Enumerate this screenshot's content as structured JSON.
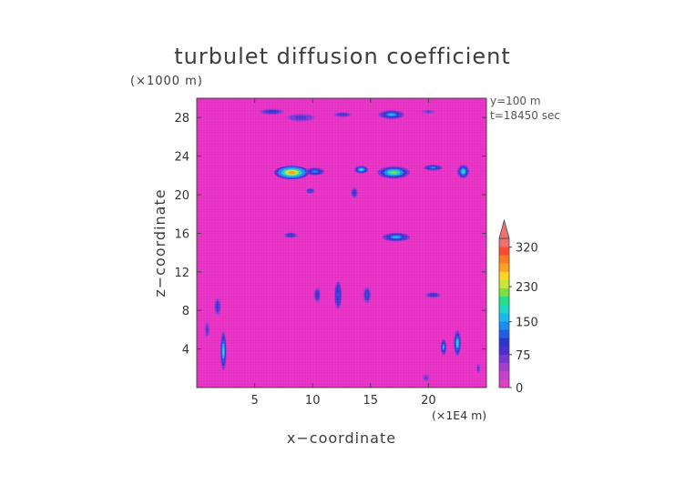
{
  "chart_data": {
    "type": "heatmap",
    "title": "turbulet diffusion coefficient",
    "xlabel": "x−coordinate",
    "ylabel": "z−coordinate",
    "x_unit": "(×1E4 m)",
    "y_unit": "(×1000 m)",
    "x_ticks": [
      5,
      10,
      15,
      20
    ],
    "y_ticks": [
      4,
      8,
      12,
      16,
      20,
      24,
      28
    ],
    "xlim": [
      0,
      25
    ],
    "ylim": [
      0,
      30
    ],
    "annotations": [
      "y=100  m",
      "t=18450 sec"
    ],
    "colorbar": {
      "tick_labels": [
        "0",
        "75",
        "150",
        "230",
        "320"
      ],
      "tick_values": [
        0,
        75,
        150,
        230,
        320
      ],
      "range": [
        0,
        340
      ],
      "colors": [
        "#e23fc4",
        "#c840cc",
        "#a43cd0",
        "#7a35d2",
        "#4b2fd0",
        "#2a36d0",
        "#1f5ee6",
        "#1a8cf2",
        "#1ab8f0",
        "#1ad8c4",
        "#22e08a",
        "#7ae040",
        "#c8e632",
        "#ffd520",
        "#ffa020",
        "#ff7a20",
        "#ff4a30",
        "#f07070"
      ]
    },
    "background_color": "#e630c4",
    "features": [
      {
        "x": 6.5,
        "y": 28.6,
        "w": 2.2,
        "h": 0.6,
        "level": 110
      },
      {
        "x": 9.0,
        "y": 28.0,
        "w": 2.5,
        "h": 0.8,
        "level": 90
      },
      {
        "x": 12.6,
        "y": 28.3,
        "w": 1.6,
        "h": 0.5,
        "level": 100
      },
      {
        "x": 16.8,
        "y": 28.3,
        "w": 2.2,
        "h": 0.9,
        "level": 160
      },
      {
        "x": 20.0,
        "y": 28.6,
        "w": 1.2,
        "h": 0.4,
        "level": 80
      },
      {
        "x": 8.2,
        "y": 22.3,
        "w": 3.0,
        "h": 1.4,
        "level": 280
      },
      {
        "x": 10.2,
        "y": 22.4,
        "w": 1.6,
        "h": 0.8,
        "level": 150
      },
      {
        "x": 14.2,
        "y": 22.6,
        "w": 1.2,
        "h": 0.8,
        "level": 180
      },
      {
        "x": 17.0,
        "y": 22.3,
        "w": 2.8,
        "h": 1.3,
        "level": 210
      },
      {
        "x": 20.4,
        "y": 22.8,
        "w": 1.6,
        "h": 0.6,
        "level": 140
      },
      {
        "x": 23.0,
        "y": 22.4,
        "w": 1.0,
        "h": 1.4,
        "level": 190
      },
      {
        "x": 9.8,
        "y": 20.4,
        "w": 0.8,
        "h": 0.6,
        "level": 120
      },
      {
        "x": 13.6,
        "y": 20.2,
        "w": 0.6,
        "h": 1.2,
        "level": 110
      },
      {
        "x": 17.2,
        "y": 15.6,
        "w": 2.4,
        "h": 0.9,
        "level": 160
      },
      {
        "x": 8.1,
        "y": 15.8,
        "w": 1.2,
        "h": 0.6,
        "level": 110
      },
      {
        "x": 12.2,
        "y": 9.6,
        "w": 0.6,
        "h": 2.8,
        "level": 130
      },
      {
        "x": 10.4,
        "y": 9.6,
        "w": 0.6,
        "h": 1.6,
        "level": 110
      },
      {
        "x": 14.7,
        "y": 9.6,
        "w": 0.7,
        "h": 1.8,
        "level": 120
      },
      {
        "x": 20.4,
        "y": 9.6,
        "w": 1.4,
        "h": 0.6,
        "level": 110
      },
      {
        "x": 1.8,
        "y": 8.4,
        "w": 0.6,
        "h": 1.8,
        "level": 100
      },
      {
        "x": 0.9,
        "y": 6.0,
        "w": 0.4,
        "h": 1.6,
        "level": 90
      },
      {
        "x": 2.3,
        "y": 3.8,
        "w": 0.5,
        "h": 4.0,
        "level": 180
      },
      {
        "x": 22.5,
        "y": 4.6,
        "w": 0.6,
        "h": 2.6,
        "level": 180
      },
      {
        "x": 21.3,
        "y": 4.2,
        "w": 0.5,
        "h": 1.6,
        "level": 160
      },
      {
        "x": 24.3,
        "y": 2.0,
        "w": 0.3,
        "h": 1.0,
        "level": 90
      },
      {
        "x": 19.8,
        "y": 1.0,
        "w": 0.6,
        "h": 0.8,
        "level": 80
      }
    ]
  }
}
